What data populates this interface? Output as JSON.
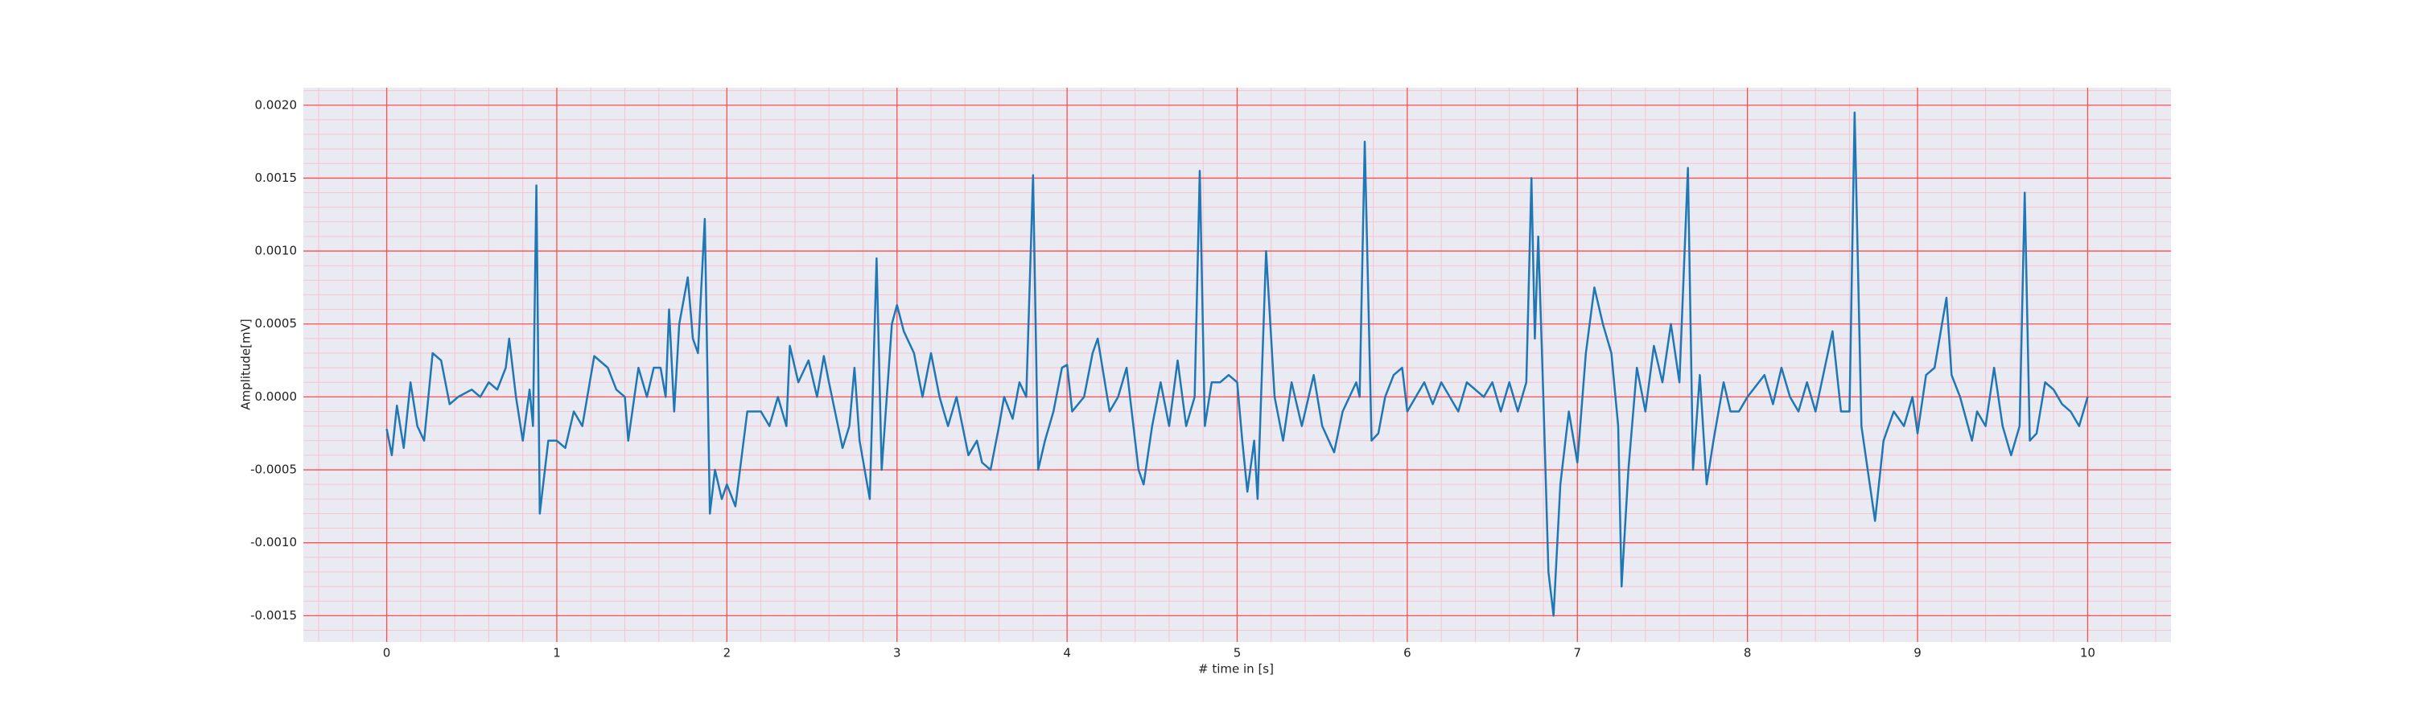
{
  "chart_data": {
    "type": "line",
    "xlabel": "# time in [s]",
    "ylabel": "Amplitude[mV]",
    "xlim": [
      -0.49,
      10.49
    ],
    "ylim": [
      -0.00168,
      0.00212
    ],
    "xticks": [
      0,
      1,
      2,
      3,
      4,
      5,
      6,
      7,
      8,
      9,
      10
    ],
    "yticks": [
      {
        "value": -0.0015,
        "label": "-0.0015"
      },
      {
        "value": -0.001,
        "label": "-0.0010"
      },
      {
        "value": -0.0005,
        "label": "-0.0005"
      },
      {
        "value": 0,
        "label": "0.0000"
      },
      {
        "value": 0.0005,
        "label": "0.0005"
      },
      {
        "value": 0.001,
        "label": "0.0010"
      },
      {
        "value": 0.0015,
        "label": "0.0015"
      },
      {
        "value": 0.002,
        "label": "0.0020"
      }
    ],
    "grid": true,
    "grid_color": "#ff4d4d",
    "minor_grid": true,
    "minor_grid_color": "#f6c4cf",
    "background": "#eaeaf2",
    "x": [
      0,
      0.03,
      0.06,
      0.1,
      0.14,
      0.18,
      0.22,
      0.27,
      0.32,
      0.37,
      0.42,
      0.5,
      0.55,
      0.6,
      0.65,
      0.7,
      0.72,
      0.76,
      0.8,
      0.84,
      0.86,
      0.88,
      0.9,
      0.95,
      1.0,
      1.05,
      1.1,
      1.15,
      1.22,
      1.3,
      1.35,
      1.4,
      1.42,
      1.48,
      1.53,
      1.57,
      1.61,
      1.64,
      1.66,
      1.69,
      1.72,
      1.77,
      1.8,
      1.83,
      1.87,
      1.9,
      1.93,
      1.97,
      2.0,
      2.05,
      2.12,
      2.2,
      2.25,
      2.3,
      2.35,
      2.37,
      2.42,
      2.48,
      2.53,
      2.57,
      2.6,
      2.68,
      2.72,
      2.75,
      2.78,
      2.84,
      2.88,
      2.91,
      2.97,
      3.0,
      3.04,
      3.1,
      3.15,
      3.2,
      3.25,
      3.3,
      3.35,
      3.42,
      3.47,
      3.5,
      3.55,
      3.6,
      3.63,
      3.68,
      3.72,
      3.76,
      3.8,
      3.83,
      3.87,
      3.92,
      3.97,
      4.0,
      4.03,
      4.1,
      4.15,
      4.18,
      4.25,
      4.3,
      4.35,
      4.42,
      4.45,
      4.5,
      4.55,
      4.6,
      4.65,
      4.7,
      4.75,
      4.78,
      4.81,
      4.85,
      4.9,
      4.95,
      5.0,
      5.03,
      5.06,
      5.1,
      5.12,
      5.17,
      5.22,
      5.27,
      5.32,
      5.38,
      5.42,
      5.45,
      5.5,
      5.57,
      5.62,
      5.66,
      5.7,
      5.72,
      5.75,
      5.79,
      5.83,
      5.87,
      5.92,
      5.97,
      6.0,
      6.05,
      6.1,
      6.15,
      6.2,
      6.3,
      6.35,
      6.45,
      6.5,
      6.55,
      6.6,
      6.65,
      6.7,
      6.73,
      6.75,
      6.77,
      6.8,
      6.83,
      6.86,
      6.9,
      6.95,
      7.0,
      7.05,
      7.1,
      7.15,
      7.2,
      7.24,
      7.26,
      7.3,
      7.35,
      7.4,
      7.45,
      7.5,
      7.55,
      7.6,
      7.65,
      7.68,
      7.72,
      7.76,
      7.8,
      7.86,
      7.9,
      7.95,
      8.0,
      8.1,
      8.15,
      8.2,
      8.25,
      8.3,
      8.35,
      8.4,
      8.5,
      8.55,
      8.6,
      8.63,
      8.67,
      8.75,
      8.8,
      8.86,
      8.92,
      8.97,
      9.0,
      9.05,
      9.1,
      9.17,
      9.2,
      9.25,
      9.32,
      9.35,
      9.4,
      9.45,
      9.5,
      9.55,
      9.6,
      9.63,
      9.66,
      9.7,
      9.75,
      9.8,
      9.85,
      9.9,
      9.95,
      10.0
    ],
    "series": [
      {
        "color": "#1f77b4",
        "values": [
          -0.00022,
          -0.0004,
          -6e-05,
          -0.00035,
          0.0001,
          -0.0002,
          -0.0003,
          0.0003,
          0.00025,
          -5e-05,
          0.0,
          5e-05,
          0.0,
          0.0001,
          5e-05,
          0.0002,
          0.0004,
          0.0,
          -0.0003,
          5e-05,
          -0.0002,
          0.00145,
          -0.0008,
          -0.0003,
          -0.0003,
          -0.00035,
          -0.0001,
          -0.0002,
          0.00028,
          0.0002,
          5e-05,
          0.0,
          -0.0003,
          0.0002,
          0.0,
          0.0002,
          0.0002,
          0.0,
          0.0006,
          -0.0001,
          0.0005,
          0.00082,
          0.0004,
          0.0003,
          0.00122,
          -0.0008,
          -0.0005,
          -0.0007,
          -0.0006,
          -0.00075,
          -0.0001,
          -0.0001,
          -0.0002,
          0.0,
          -0.0002,
          0.00035,
          0.0001,
          0.00025,
          0.0,
          0.00028,
          0.0001,
          -0.00035,
          -0.0002,
          0.0002,
          -0.0003,
          -0.0007,
          0.00095,
          -0.0005,
          0.0005,
          0.00063,
          0.00045,
          0.0003,
          0.0,
          0.0003,
          0.0,
          -0.0002,
          0.0,
          -0.0004,
          -0.0003,
          -0.00045,
          -0.0005,
          -0.0002,
          0.0,
          -0.00015,
          0.0001,
          0.0,
          0.00152,
          -0.0005,
          -0.0003,
          -0.0001,
          0.0002,
          0.00022,
          -0.0001,
          0.0,
          0.0003,
          0.0004,
          -0.0001,
          0.0,
          0.0002,
          -0.0005,
          -0.0006,
          -0.0002,
          0.0001,
          -0.0002,
          0.00025,
          -0.0002,
          0.0,
          0.00155,
          -0.0002,
          0.0001,
          0.0001,
          0.00015,
          0.0001,
          -0.0003,
          -0.00065,
          -0.0003,
          -0.0007,
          0.001,
          0.0,
          -0.0003,
          0.0001,
          -0.0002,
          0.0,
          0.00015,
          -0.0002,
          -0.00038,
          -0.0001,
          0.0,
          0.0001,
          0.0,
          0.00175,
          -0.0003,
          -0.00025,
          0.0,
          0.00015,
          0.0002,
          -0.0001,
          0.0,
          0.0001,
          -5e-05,
          0.0001,
          -0.0001,
          0.0001,
          0.0,
          0.0001,
          -0.0001,
          0.0001,
          -0.0001,
          0.0001,
          0.0015,
          0.0004,
          0.0011,
          0.0,
          -0.0012,
          -0.0015,
          -0.0006,
          -0.0001,
          -0.00045,
          0.0003,
          0.00075,
          0.0005,
          0.0003,
          -0.0002,
          -0.0013,
          -0.0005,
          0.0002,
          -0.0001,
          0.00035,
          0.0001,
          0.0005,
          0.0001,
          0.00157,
          -0.0005,
          0.00015,
          -0.0006,
          -0.0003,
          0.0001,
          -0.0001,
          -0.0001,
          0.0,
          0.00015,
          -5e-05,
          0.0002,
          0.0,
          -0.0001,
          0.0001,
          -0.0001,
          0.00045,
          -0.0001,
          -0.0001,
          0.00195,
          -0.0002,
          -0.00085,
          -0.0003,
          -0.0001,
          -0.0002,
          0.0,
          -0.00025,
          0.00015,
          0.0002,
          0.00068,
          0.00015,
          0.0,
          -0.0003,
          -0.0001,
          -0.0002,
          0.0002,
          -0.0002,
          -0.0004,
          -0.0002,
          0.0014,
          -0.0003,
          -0.00025,
          0.0001,
          5e-05,
          -5e-05,
          -0.0001,
          -0.0002,
          0.0
        ]
      }
    ]
  }
}
